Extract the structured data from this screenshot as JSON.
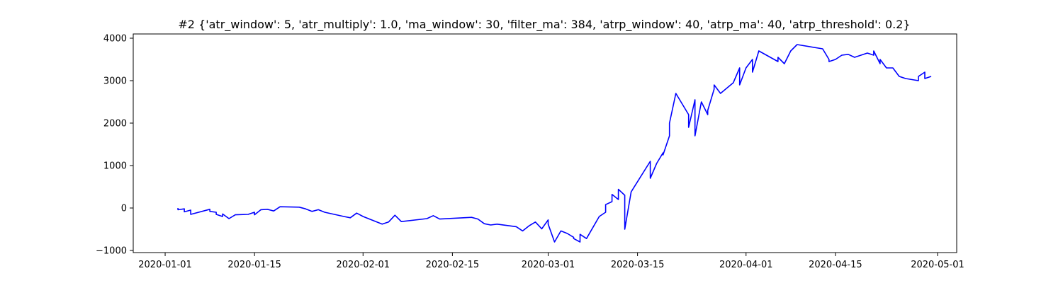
{
  "chart_data": {
    "type": "line",
    "title": "#2 {'atr_window': 5, 'atr_multiply': 1.0, 'ma_window': 30, 'filter_ma': 384, 'atrp_window': 40, 'atrp_ma': 40, 'atrp_threshold': 0.2}",
    "xlabel": "",
    "ylabel": "",
    "x_axis_kind": "date",
    "xlim": [
      "2019-12-27",
      "2020-05-04"
    ],
    "ylim": [
      -1050,
      4100
    ],
    "x_ticks": [
      "2020-01-01",
      "2020-01-15",
      "2020-02-01",
      "2020-02-15",
      "2020-03-01",
      "2020-03-15",
      "2020-04-01",
      "2020-04-15",
      "2020-05-01"
    ],
    "y_ticks": [
      -1000,
      0,
      1000,
      2000,
      3000,
      4000
    ],
    "y_tick_labels": [
      "−1000",
      "0",
      "1000",
      "2000",
      "3000",
      "4000"
    ],
    "grid": false,
    "series": [
      {
        "color": "#0000ff",
        "x": [
          "2020-01-03",
          "2020-01-03",
          "2020-01-04",
          "2020-01-04",
          "2020-01-05",
          "2020-01-05",
          "2020-01-08",
          "2020-01-08",
          "2020-01-09",
          "2020-01-09",
          "2020-01-10",
          "2020-01-10",
          "2020-01-11",
          "2020-01-12",
          "2020-01-14",
          "2020-01-15",
          "2020-01-15",
          "2020-01-16",
          "2020-01-17",
          "2020-01-18",
          "2020-01-19",
          "2020-01-22",
          "2020-01-23",
          "2020-01-24",
          "2020-01-25",
          "2020-01-26",
          "2020-01-29",
          "2020-01-30",
          "2020-01-31",
          "2020-02-01",
          "2020-02-04",
          "2020-02-05",
          "2020-02-06",
          "2020-02-07",
          "2020-02-11",
          "2020-02-12",
          "2020-02-13",
          "2020-02-18",
          "2020-02-19",
          "2020-02-20",
          "2020-02-21",
          "2020-02-22",
          "2020-02-25",
          "2020-02-26",
          "2020-02-27",
          "2020-02-28",
          "2020-02-29",
          "2020-03-01",
          "2020-03-01",
          "2020-03-02",
          "2020-03-03",
          "2020-03-04",
          "2020-03-05",
          "2020-03-05",
          "2020-03-06",
          "2020-03-06",
          "2020-03-07",
          "2020-03-09",
          "2020-03-10",
          "2020-03-10",
          "2020-03-11",
          "2020-03-11",
          "2020-03-12",
          "2020-03-12",
          "2020-03-13",
          "2020-03-13",
          "2020-03-14",
          "2020-03-17",
          "2020-03-17",
          "2020-03-18",
          "2020-03-19",
          "2020-03-19",
          "2020-03-20",
          "2020-03-20",
          "2020-03-21",
          "2020-03-23",
          "2020-03-23",
          "2020-03-24",
          "2020-03-24",
          "2020-03-25",
          "2020-03-26",
          "2020-03-26",
          "2020-03-27",
          "2020-03-27",
          "2020-03-28",
          "2020-03-30",
          "2020-03-30",
          "2020-03-31",
          "2020-03-31",
          "2020-04-01",
          "2020-04-02",
          "2020-04-02",
          "2020-04-03",
          "2020-04-06",
          "2020-04-06",
          "2020-04-07",
          "2020-04-08",
          "2020-04-09",
          "2020-04-13",
          "2020-04-14",
          "2020-04-14",
          "2020-04-15",
          "2020-04-16",
          "2020-04-17",
          "2020-04-18",
          "2020-04-20",
          "2020-04-21",
          "2020-04-21",
          "2020-04-22",
          "2020-04-22",
          "2020-04-23",
          "2020-04-24",
          "2020-04-25",
          "2020-04-26",
          "2020-04-28",
          "2020-04-28",
          "2020-04-29",
          "2020-04-29",
          "2020-04-30"
        ],
        "y": [
          0,
          -40,
          -20,
          -90,
          -50,
          -150,
          -30,
          -80,
          -100,
          -150,
          -200,
          -140,
          -250,
          -160,
          -150,
          -100,
          -160,
          -40,
          -30,
          -70,
          30,
          20,
          -20,
          -80,
          -40,
          -100,
          -200,
          -230,
          -120,
          -200,
          -380,
          -330,
          -170,
          -320,
          -250,
          -180,
          -260,
          -220,
          -260,
          -370,
          -400,
          -380,
          -440,
          -540,
          -420,
          -330,
          -490,
          -280,
          -380,
          -800,
          -540,
          -600,
          -690,
          -720,
          -800,
          -620,
          -720,
          -200,
          -100,
          80,
          150,
          320,
          200,
          440,
          300,
          -500,
          380,
          1100,
          700,
          1050,
          1300,
          1250,
          1700,
          2000,
          2700,
          2200,
          1900,
          2550,
          1700,
          2500,
          2200,
          2300,
          2800,
          2900,
          2700,
          2950,
          2950,
          3300,
          2900,
          3300,
          3500,
          3200,
          3700,
          3450,
          3550,
          3400,
          3700,
          3850,
          3750,
          3500,
          3450,
          3500,
          3600,
          3620,
          3550,
          3650,
          3600,
          3700,
          3400,
          3500,
          3300,
          3300,
          3100,
          3050,
          3000,
          3100,
          3200,
          3050,
          3100
        ]
      }
    ]
  }
}
